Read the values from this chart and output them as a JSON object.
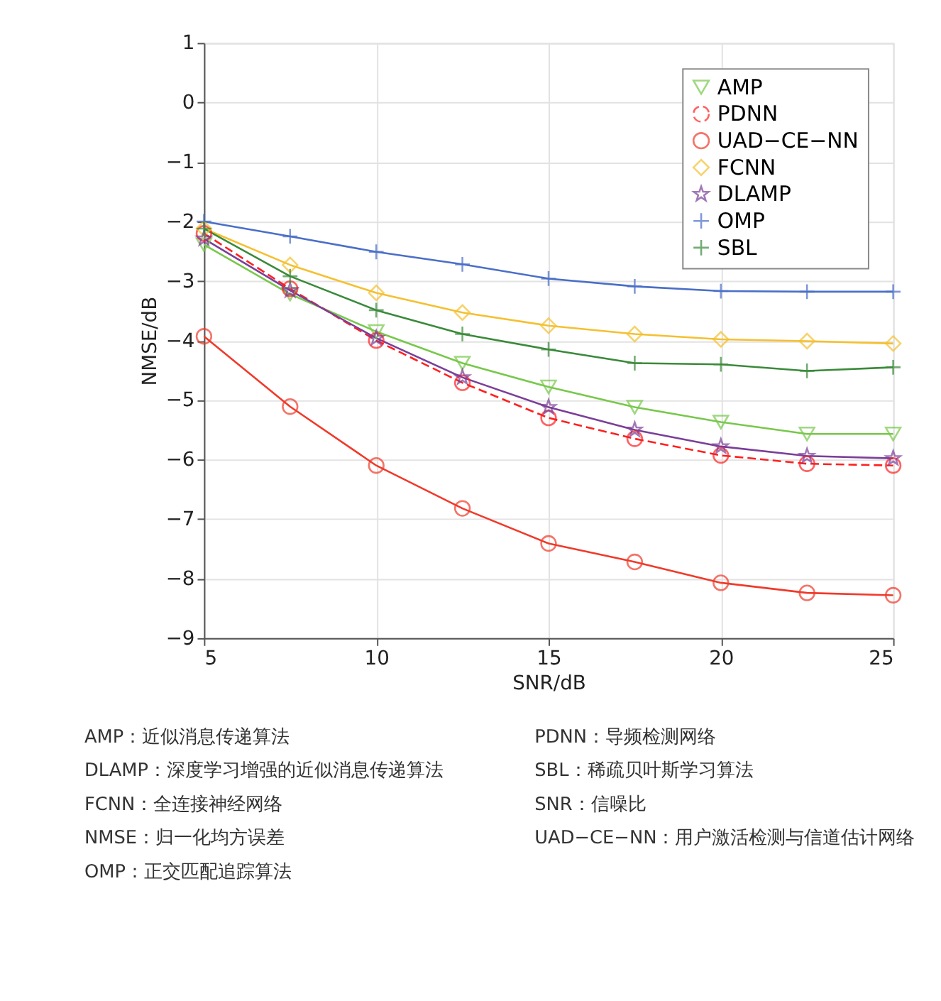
{
  "chart_data": {
    "type": "line",
    "xlabel": "SNR/dB",
    "ylabel": "NMSE/dB",
    "x": [
      5,
      7.5,
      10,
      12.5,
      15,
      17.5,
      20,
      22.5,
      25
    ],
    "xlim": [
      5,
      25
    ],
    "xticks": [
      5,
      10,
      15,
      20,
      25
    ],
    "ylim": [
      -9,
      1
    ],
    "yticks": [
      1,
      0,
      -1,
      -2,
      -3,
      -4,
      -5,
      -6,
      -7,
      -8,
      -9
    ],
    "grid": true,
    "legend": "top right",
    "series": [
      {
        "name": "AMP",
        "color": "#77c84a",
        "marker": "triangle",
        "line_style": "solid",
        "values": [
          -2.39,
          -3.22,
          -3.85,
          -4.38,
          -4.78,
          -5.12,
          -5.37,
          -5.57,
          -5.57
        ]
      },
      {
        "name": "PDNN",
        "color": "#ff2020",
        "marker": "circle",
        "line_style": "dashed",
        "values": [
          -2.2,
          -3.13,
          -4.0,
          -4.71,
          -5.3,
          -5.65,
          -5.93,
          -6.07,
          -6.1
        ]
      },
      {
        "name": "UAD−CE−NN",
        "color": "#f03a2a",
        "marker": "circle",
        "line_style": "solid",
        "values": [
          -3.93,
          -5.11,
          -6.1,
          -6.82,
          -7.41,
          -7.72,
          -8.07,
          -8.24,
          -8.28
        ]
      },
      {
        "name": "FCNN",
        "color": "#f5c030",
        "marker": "diamond",
        "line_style": "solid",
        "values": [
          -2.12,
          -2.73,
          -3.2,
          -3.53,
          -3.75,
          -3.89,
          -3.98,
          -4.01,
          -4.05
        ]
      },
      {
        "name": "DLAMP",
        "color": "#7b3f98",
        "marker": "star",
        "line_style": "solid",
        "values": [
          -2.29,
          -3.16,
          -3.96,
          -4.62,
          -5.12,
          -5.5,
          -5.78,
          -5.94,
          -5.98
        ]
      },
      {
        "name": "OMP",
        "color": "#4a6fc8",
        "marker": "cross",
        "line_style": "solid",
        "values": [
          -2.0,
          -2.25,
          -2.51,
          -2.72,
          -2.96,
          -3.09,
          -3.17,
          -3.18,
          -3.18
        ]
      },
      {
        "name": "SBL",
        "color": "#3a8a3a",
        "marker": "cross",
        "line_style": "solid",
        "values": [
          -2.12,
          -2.92,
          -3.49,
          -3.89,
          -4.15,
          -4.38,
          -4.4,
          -4.51,
          -4.45
        ]
      }
    ],
    "annotations": [
      "AMP：近似消息传递算法",
      "DLAMP：深度学习增强的近似消息传递算法",
      "FCNN：全连接神经网络",
      "NMSE：归一化均方误差",
      "OMP：正交匹配追踪算法",
      "PDNN：导频检测网络",
      "SBL：稀疏贝叶斯学习算法",
      "SNR：信噪比",
      "UAD−CE−NN：用户激活检测与信道估计网络"
    ]
  }
}
